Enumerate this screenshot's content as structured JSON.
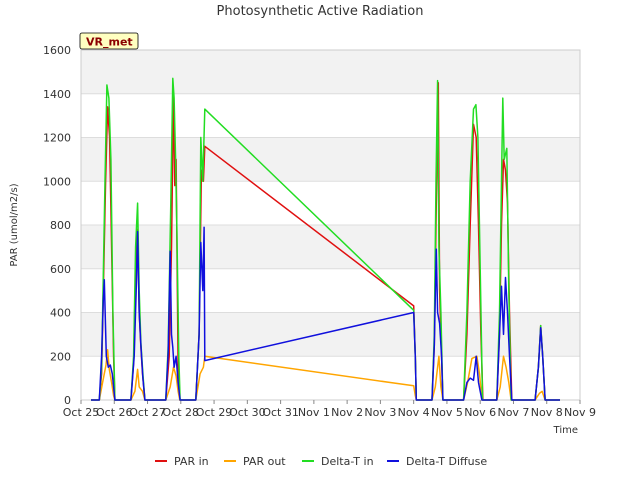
{
  "chart_data": {
    "type": "line",
    "title": "Photosynthetic Active Radiation",
    "xlabel": "Time",
    "ylabel": "PAR (umol/m2/s)",
    "ylim": [
      0,
      1600
    ],
    "yticks": [
      0,
      200,
      400,
      600,
      800,
      1000,
      1200,
      1400,
      1600
    ],
    "xlim": [
      0,
      15
    ],
    "xticks": [
      {
        "value": 0,
        "label": "Oct 25"
      },
      {
        "value": 1,
        "label": "Oct 26"
      },
      {
        "value": 2,
        "label": "Oct 27"
      },
      {
        "value": 3,
        "label": "Oct 28"
      },
      {
        "value": 4,
        "label": "Oct 29"
      },
      {
        "value": 5,
        "label": "Oct 30"
      },
      {
        "value": 6,
        "label": "Oct 31"
      },
      {
        "value": 7,
        "label": "Nov 1"
      },
      {
        "value": 8,
        "label": "Nov 2"
      },
      {
        "value": 9,
        "label": "Nov 3"
      },
      {
        "value": 10,
        "label": "Nov 4"
      },
      {
        "value": 11,
        "label": "Nov 5"
      },
      {
        "value": 12,
        "label": "Nov 6"
      },
      {
        "value": 13,
        "label": "Nov 7"
      },
      {
        "value": 14,
        "label": "Nov 8"
      },
      {
        "value": 15,
        "label": "Nov 9"
      }
    ],
    "station_badge": "VR_met",
    "legend_position": "bottom-center",
    "grid": true,
    "series": [
      {
        "name": "PAR in",
        "color": "#e01010",
        "points": [
          [
            0.3,
            0
          ],
          [
            0.55,
            0
          ],
          [
            0.62,
            120
          ],
          [
            0.68,
            560
          ],
          [
            0.74,
            1000
          ],
          [
            0.8,
            1340
          ],
          [
            0.86,
            1200
          ],
          [
            0.92,
            700
          ],
          [
            0.98,
            200
          ],
          [
            1.02,
            0
          ],
          [
            1.5,
            0
          ],
          [
            1.58,
            170
          ],
          [
            1.64,
            600
          ],
          [
            1.7,
            780
          ],
          [
            1.75,
            400
          ],
          [
            1.8,
            240
          ],
          [
            1.85,
            120
          ],
          [
            1.92,
            0
          ],
          [
            2.55,
            0
          ],
          [
            2.65,
            200
          ],
          [
            2.72,
            700
          ],
          [
            2.78,
            1400
          ],
          [
            2.82,
            980
          ],
          [
            2.86,
            1100
          ],
          [
            2.92,
            160
          ],
          [
            2.97,
            0
          ],
          [
            3.45,
            0
          ],
          [
            3.55,
            300
          ],
          [
            3.62,
            1050
          ],
          [
            3.68,
            1000
          ],
          [
            3.72,
            1160
          ],
          [
            10.0,
            430
          ],
          [
            10.05,
            200
          ],
          [
            10.08,
            0
          ],
          [
            10.55,
            0
          ],
          [
            10.62,
            250
          ],
          [
            10.68,
            900
          ],
          [
            10.74,
            1450
          ],
          [
            10.78,
            500
          ],
          [
            10.82,
            300
          ],
          [
            10.88,
            0
          ],
          [
            11.5,
            0
          ],
          [
            11.6,
            300
          ],
          [
            11.7,
            800
          ],
          [
            11.8,
            1260
          ],
          [
            11.88,
            1200
          ],
          [
            11.95,
            800
          ],
          [
            12.02,
            300
          ],
          [
            12.08,
            0
          ],
          [
            12.5,
            0
          ],
          [
            12.58,
            300
          ],
          [
            12.64,
            800
          ],
          [
            12.7,
            1100
          ],
          [
            12.76,
            1050
          ],
          [
            12.82,
            900
          ],
          [
            12.88,
            400
          ],
          [
            12.95,
            0
          ],
          [
            13.65,
            0
          ],
          [
            13.75,
            150
          ],
          [
            13.82,
            340
          ],
          [
            13.88,
            200
          ],
          [
            13.95,
            0
          ],
          [
            14.4,
            0
          ]
        ]
      },
      {
        "name": "PAR out",
        "color": "#ffa500",
        "points": [
          [
            0.3,
            0
          ],
          [
            0.55,
            0
          ],
          [
            0.65,
            80
          ],
          [
            0.75,
            160
          ],
          [
            0.8,
            230
          ],
          [
            0.85,
            140
          ],
          [
            0.92,
            80
          ],
          [
            0.98,
            20
          ],
          [
            1.02,
            0
          ],
          [
            1.5,
            0
          ],
          [
            1.62,
            40
          ],
          [
            1.7,
            140
          ],
          [
            1.75,
            60
          ],
          [
            1.85,
            40
          ],
          [
            1.92,
            0
          ],
          [
            2.55,
            0
          ],
          [
            2.68,
            60
          ],
          [
            2.78,
            150
          ],
          [
            2.86,
            110
          ],
          [
            2.92,
            40
          ],
          [
            2.97,
            0
          ],
          [
            3.45,
            0
          ],
          [
            3.58,
            120
          ],
          [
            3.68,
            150
          ],
          [
            3.72,
            200
          ],
          [
            10.0,
            65
          ],
          [
            10.05,
            20
          ],
          [
            10.08,
            0
          ],
          [
            10.55,
            0
          ],
          [
            10.65,
            60
          ],
          [
            10.72,
            150
          ],
          [
            10.76,
            200
          ],
          [
            10.82,
            60
          ],
          [
            10.88,
            0
          ],
          [
            11.5,
            0
          ],
          [
            11.62,
            80
          ],
          [
            11.75,
            190
          ],
          [
            11.9,
            200
          ],
          [
            11.98,
            120
          ],
          [
            12.05,
            0
          ],
          [
            12.5,
            0
          ],
          [
            12.6,
            60
          ],
          [
            12.7,
            200
          ],
          [
            12.78,
            150
          ],
          [
            12.86,
            80
          ],
          [
            12.93,
            0
          ],
          [
            13.65,
            0
          ],
          [
            13.78,
            30
          ],
          [
            13.86,
            40
          ],
          [
            13.95,
            0
          ],
          [
            14.4,
            0
          ]
        ]
      },
      {
        "name": "Delta-T in",
        "color": "#22dd22",
        "points": [
          [
            0.3,
            0
          ],
          [
            0.55,
            0
          ],
          [
            0.62,
            150
          ],
          [
            0.67,
            570
          ],
          [
            0.72,
            1000
          ],
          [
            0.78,
            1440
          ],
          [
            0.84,
            1380
          ],
          [
            0.9,
            1100
          ],
          [
            0.96,
            400
          ],
          [
            1.02,
            0
          ],
          [
            1.5,
            0
          ],
          [
            1.58,
            200
          ],
          [
            1.64,
            700
          ],
          [
            1.7,
            900
          ],
          [
            1.75,
            500
          ],
          [
            1.8,
            260
          ],
          [
            1.86,
            120
          ],
          [
            1.92,
            0
          ],
          [
            2.55,
            0
          ],
          [
            2.62,
            250
          ],
          [
            2.7,
            900
          ],
          [
            2.76,
            1470
          ],
          [
            2.8,
            1380
          ],
          [
            2.84,
            1120
          ],
          [
            2.88,
            800
          ],
          [
            2.94,
            200
          ],
          [
            2.98,
            0
          ],
          [
            3.45,
            0
          ],
          [
            3.55,
            300
          ],
          [
            3.6,
            1200
          ],
          [
            3.66,
            1000
          ],
          [
            3.72,
            1330
          ],
          [
            10.0,
            410
          ],
          [
            10.05,
            200
          ],
          [
            10.08,
            0
          ],
          [
            10.55,
            0
          ],
          [
            10.62,
            300
          ],
          [
            10.67,
            1000
          ],
          [
            10.72,
            1460
          ],
          [
            10.76,
            700
          ],
          [
            10.82,
            400
          ],
          [
            10.88,
            0
          ],
          [
            11.5,
            0
          ],
          [
            11.6,
            400
          ],
          [
            11.7,
            1000
          ],
          [
            11.8,
            1330
          ],
          [
            11.87,
            1350
          ],
          [
            11.93,
            1200
          ],
          [
            12.0,
            600
          ],
          [
            12.07,
            0
          ],
          [
            12.5,
            0
          ],
          [
            12.58,
            400
          ],
          [
            12.64,
            1000
          ],
          [
            12.68,
            1380
          ],
          [
            12.72,
            1100
          ],
          [
            12.8,
            1150
          ],
          [
            12.86,
            500
          ],
          [
            12.93,
            0
          ],
          [
            13.65,
            0
          ],
          [
            13.75,
            150
          ],
          [
            13.82,
            340
          ],
          [
            13.88,
            200
          ],
          [
            13.95,
            0
          ],
          [
            14.4,
            0
          ]
        ]
      },
      {
        "name": "Delta-T Diffuse",
        "color": "#1010dd",
        "points": [
          [
            0.3,
            0
          ],
          [
            0.55,
            0
          ],
          [
            0.62,
            200
          ],
          [
            0.67,
            460
          ],
          [
            0.7,
            550
          ],
          [
            0.76,
            200
          ],
          [
            0.82,
            150
          ],
          [
            0.88,
            160
          ],
          [
            0.94,
            120
          ],
          [
            1.02,
            0
          ],
          [
            1.5,
            0
          ],
          [
            1.6,
            200
          ],
          [
            1.66,
            500
          ],
          [
            1.7,
            770
          ],
          [
            1.75,
            400
          ],
          [
            1.8,
            250
          ],
          [
            1.86,
            100
          ],
          [
            1.92,
            0
          ],
          [
            2.55,
            0
          ],
          [
            2.62,
            220
          ],
          [
            2.68,
            680
          ],
          [
            2.72,
            300
          ],
          [
            2.76,
            240
          ],
          [
            2.8,
            150
          ],
          [
            2.86,
            200
          ],
          [
            2.92,
            80
          ],
          [
            2.98,
            0
          ],
          [
            3.45,
            0
          ],
          [
            3.55,
            300
          ],
          [
            3.6,
            720
          ],
          [
            3.66,
            500
          ],
          [
            3.7,
            790
          ],
          [
            3.72,
            180
          ],
          [
            10.0,
            400
          ],
          [
            10.05,
            200
          ],
          [
            10.08,
            0
          ],
          [
            10.55,
            0
          ],
          [
            10.62,
            250
          ],
          [
            10.68,
            690
          ],
          [
            10.72,
            400
          ],
          [
            10.78,
            350
          ],
          [
            10.84,
            200
          ],
          [
            10.88,
            0
          ],
          [
            11.5,
            0
          ],
          [
            11.6,
            80
          ],
          [
            11.7,
            100
          ],
          [
            11.8,
            90
          ],
          [
            11.88,
            200
          ],
          [
            11.95,
            80
          ],
          [
            12.05,
            0
          ],
          [
            12.5,
            0
          ],
          [
            12.58,
            300
          ],
          [
            12.64,
            520
          ],
          [
            12.7,
            300
          ],
          [
            12.76,
            560
          ],
          [
            12.82,
            400
          ],
          [
            12.88,
            200
          ],
          [
            12.95,
            0
          ],
          [
            13.65,
            0
          ],
          [
            13.75,
            150
          ],
          [
            13.82,
            330
          ],
          [
            13.88,
            200
          ],
          [
            13.95,
            0
          ],
          [
            14.4,
            0
          ]
        ]
      }
    ]
  }
}
